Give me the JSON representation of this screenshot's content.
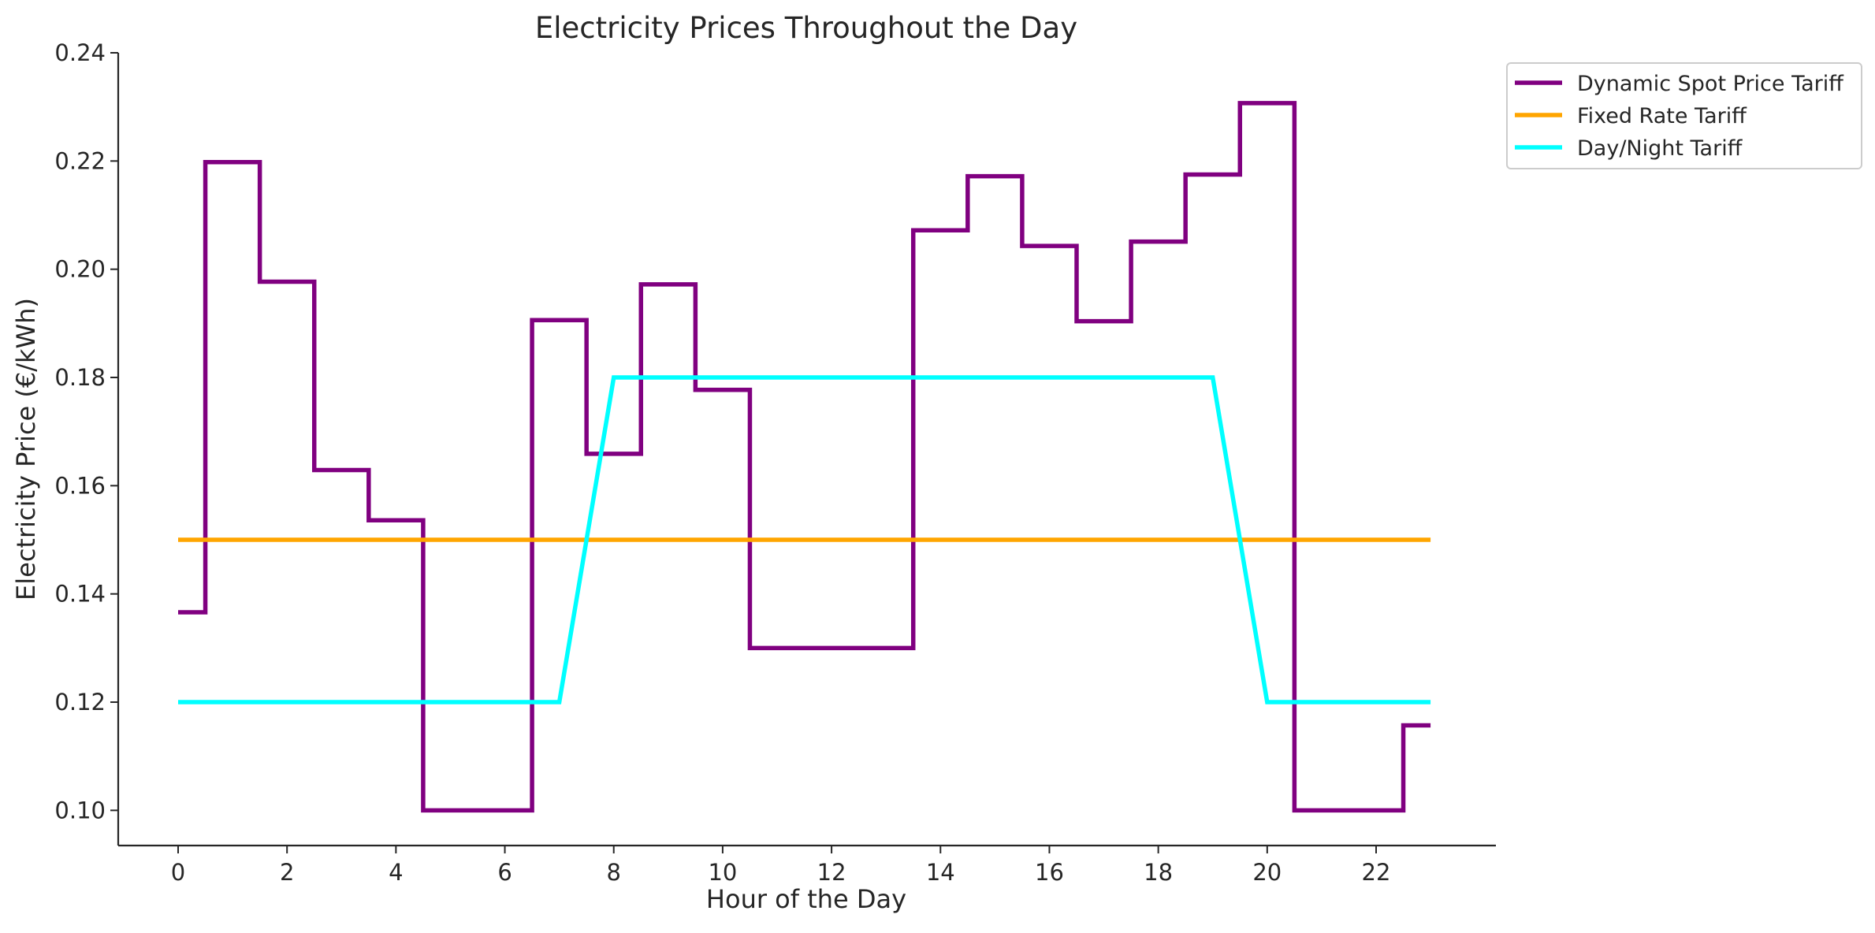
{
  "chart_data": {
    "type": "line",
    "title": "Electricity Prices Throughout the Day",
    "xlabel": "Hour of the Day",
    "ylabel": "Electricity Price (€/kWh)",
    "xlim": [
      -1.1,
      24.2
    ],
    "ylim": [
      0.0935,
      0.24
    ],
    "xticks": [
      0,
      2,
      4,
      6,
      8,
      10,
      12,
      14,
      16,
      18,
      20,
      22
    ],
    "xtick_labels": [
      "0",
      "2",
      "4",
      "6",
      "8",
      "10",
      "12",
      "14",
      "16",
      "18",
      "20",
      "22"
    ],
    "yticks": [
      0.1,
      0.12,
      0.14,
      0.16,
      0.18,
      0.2,
      0.22,
      0.24
    ],
    "ytick_labels": [
      "0.10",
      "0.12",
      "0.14",
      "0.16",
      "0.18",
      "0.20",
      "0.22",
      "0.24"
    ],
    "grid": false,
    "legend_position": "outside-top-right",
    "x": [
      0,
      1,
      2,
      3,
      4,
      5,
      6,
      7,
      8,
      9,
      10,
      11,
      12,
      13,
      14,
      15,
      16,
      17,
      18,
      19,
      20,
      21,
      22,
      23
    ],
    "series": [
      {
        "name": "Dynamic Spot Price Tariff",
        "color": "#800080",
        "style": "step-mid",
        "values": [
          0.1366,
          0.2198,
          0.1977,
          0.1629,
          0.1536,
          0.1,
          0.1,
          0.1906,
          0.1659,
          0.1972,
          0.1777,
          0.13,
          0.13,
          0.13,
          0.2072,
          0.2172,
          0.2043,
          0.1904,
          0.2051,
          0.2175,
          0.2307,
          0.1,
          0.1,
          0.1157
        ]
      },
      {
        "name": "Fixed Rate Tariff",
        "color": "#FFA500",
        "style": "line",
        "values": [
          0.15,
          0.15,
          0.15,
          0.15,
          0.15,
          0.15,
          0.15,
          0.15,
          0.15,
          0.15,
          0.15,
          0.15,
          0.15,
          0.15,
          0.15,
          0.15,
          0.15,
          0.15,
          0.15,
          0.15,
          0.15,
          0.15,
          0.15,
          0.15
        ]
      },
      {
        "name": "Day/Night Tariff",
        "color": "#00FFFF",
        "style": "line",
        "values": [
          0.12,
          0.12,
          0.12,
          0.12,
          0.12,
          0.12,
          0.12,
          0.12,
          0.18,
          0.18,
          0.18,
          0.18,
          0.18,
          0.18,
          0.18,
          0.18,
          0.18,
          0.18,
          0.18,
          0.18,
          0.12,
          0.12,
          0.12,
          0.12
        ]
      }
    ]
  }
}
